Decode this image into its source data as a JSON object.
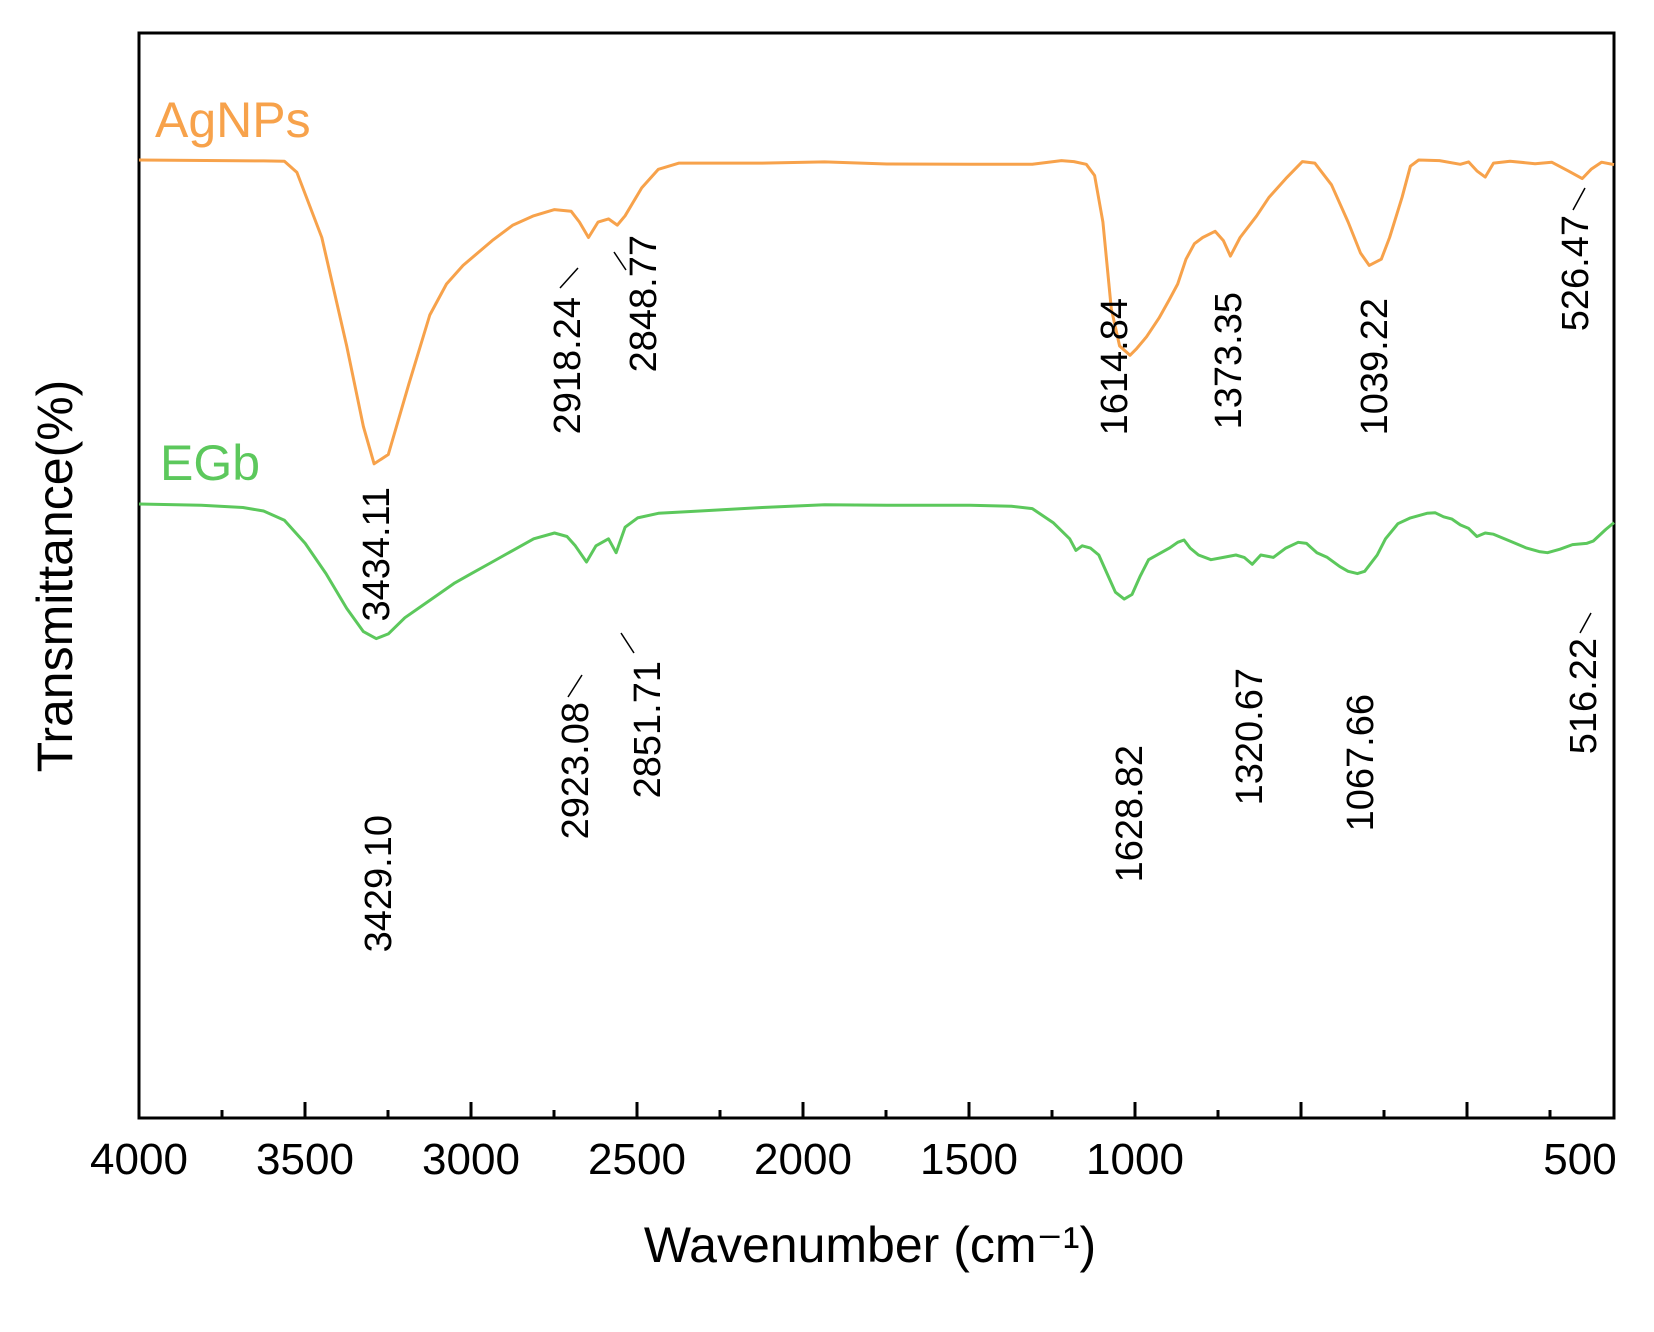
{
  "chart_data": {
    "type": "line",
    "xlabel": "Wavenumber (cm⁻¹)",
    "ylabel": "Transmittance(%)",
    "xlim": [
      4000,
      450
    ],
    "x_reversed": true,
    "y_ticks": false,
    "grid": false,
    "legend": "inline labels above each spectrum",
    "x_ticks": [
      "4000",
      "3500",
      "3000",
      "2500",
      "2000",
      "1500",
      "1000",
      "500"
    ],
    "series": [
      {
        "name": "AgNPs",
        "color": "#f7a24b",
        "points": [
          [
            4000,
            100
          ],
          [
            3800,
            99.8
          ],
          [
            3700,
            99.7
          ],
          [
            3650,
            99.6
          ],
          [
            3620,
            96
          ],
          [
            3560,
            75
          ],
          [
            3500,
            40
          ],
          [
            3460,
            14
          ],
          [
            3434.11,
            2
          ],
          [
            3400,
            5
          ],
          [
            3350,
            28
          ],
          [
            3300,
            50
          ],
          [
            3260,
            60
          ],
          [
            3220,
            66
          ],
          [
            3150,
            74
          ],
          [
            3100,
            79
          ],
          [
            3050,
            82
          ],
          [
            3000,
            84
          ],
          [
            2960,
            83.5
          ],
          [
            2940,
            80
          ],
          [
            2918.24,
            75
          ],
          [
            2895,
            80
          ],
          [
            2870,
            81
          ],
          [
            2848.77,
            79
          ],
          [
            2830,
            82
          ],
          [
            2790,
            91
          ],
          [
            2750,
            97
          ],
          [
            2700,
            99
          ],
          [
            2500,
            99
          ],
          [
            2350,
            99.4
          ],
          [
            2200,
            98.7
          ],
          [
            2000,
            98.6
          ],
          [
            1850,
            98.6
          ],
          [
            1780,
            99.8
          ],
          [
            1750,
            99.5
          ],
          [
            1720,
            98.6
          ],
          [
            1700,
            95
          ],
          [
            1680,
            80
          ],
          [
            1660,
            52
          ],
          [
            1640,
            40
          ],
          [
            1614.84,
            37
          ],
          [
            1600,
            39
          ],
          [
            1575,
            43
          ],
          [
            1545,
            49
          ],
          [
            1520,
            55
          ],
          [
            1500,
            60
          ],
          [
            1480,
            68
          ],
          [
            1460,
            73
          ],
          [
            1440,
            75
          ],
          [
            1410,
            77
          ],
          [
            1390,
            74
          ],
          [
            1373.35,
            69
          ],
          [
            1350,
            75
          ],
          [
            1310,
            82
          ],
          [
            1280,
            88
          ],
          [
            1240,
            94
          ],
          [
            1200,
            99.5
          ],
          [
            1170,
            99
          ],
          [
            1130,
            92
          ],
          [
            1090,
            80
          ],
          [
            1060,
            70
          ],
          [
            1039.22,
            66
          ],
          [
            1010,
            68
          ],
          [
            990,
            75
          ],
          [
            960,
            88
          ],
          [
            940,
            98
          ],
          [
            920,
            100
          ],
          [
            870,
            99.8
          ],
          [
            820,
            98.6
          ],
          [
            800,
            99.4
          ],
          [
            780,
            96.5
          ],
          [
            760,
            94.5
          ],
          [
            740,
            99
          ],
          [
            700,
            99.6
          ],
          [
            640,
            98.8
          ],
          [
            600,
            99.3
          ],
          [
            560,
            96.5
          ],
          [
            526.47,
            94
          ],
          [
            505,
            97
          ],
          [
            480,
            99.3
          ],
          [
            450,
            98.5
          ]
        ],
        "peak_labels": [
          "3434.11",
          "2918.24",
          "2848.77",
          "1614.84",
          "1373.35",
          "1039.22",
          "526.47"
        ]
      },
      {
        "name": "EGb",
        "color": "#5cc85c",
        "points": [
          [
            4000,
            100
          ],
          [
            3850,
            99.5
          ],
          [
            3750,
            98.5
          ],
          [
            3700,
            97
          ],
          [
            3650,
            93
          ],
          [
            3600,
            83
          ],
          [
            3550,
            70
          ],
          [
            3500,
            55
          ],
          [
            3460,
            45
          ],
          [
            3429.1,
            42
          ],
          [
            3400,
            44
          ],
          [
            3360,
            51
          ],
          [
            3320,
            56
          ],
          [
            3280,
            61
          ],
          [
            3240,
            66
          ],
          [
            3200,
            70
          ],
          [
            3150,
            75
          ],
          [
            3100,
            80
          ],
          [
            3050,
            85
          ],
          [
            3000,
            87.5
          ],
          [
            2970,
            86
          ],
          [
            2950,
            82
          ],
          [
            2923.08,
            75
          ],
          [
            2900,
            82
          ],
          [
            2870,
            85
          ],
          [
            2851.71,
            79
          ],
          [
            2830,
            90
          ],
          [
            2800,
            94
          ],
          [
            2750,
            96
          ],
          [
            2650,
            97
          ],
          [
            2500,
            98.5
          ],
          [
            2350,
            99.7
          ],
          [
            2200,
            99.5
          ],
          [
            2000,
            99.5
          ],
          [
            1900,
            99
          ],
          [
            1850,
            98
          ],
          [
            1800,
            92
          ],
          [
            1760,
            85
          ],
          [
            1745,
            80
          ],
          [
            1730,
            82
          ],
          [
            1710,
            81
          ],
          [
            1690,
            78
          ],
          [
            1670,
            70
          ],
          [
            1650,
            62
          ],
          [
            1628.82,
            59
          ],
          [
            1610,
            61
          ],
          [
            1590,
            69
          ],
          [
            1570,
            76
          ],
          [
            1540,
            79
          ],
          [
            1520,
            81
          ],
          [
            1500,
            83.5
          ],
          [
            1485,
            84.5
          ],
          [
            1470,
            81
          ],
          [
            1450,
            78
          ],
          [
            1420,
            76
          ],
          [
            1390,
            77
          ],
          [
            1360,
            78
          ],
          [
            1340,
            77
          ],
          [
            1320.67,
            74
          ],
          [
            1300,
            78
          ],
          [
            1270,
            77
          ],
          [
            1240,
            81
          ],
          [
            1210,
            83.5
          ],
          [
            1190,
            83
          ],
          [
            1165,
            79
          ],
          [
            1140,
            77
          ],
          [
            1110,
            73
          ],
          [
            1090,
            71
          ],
          [
            1067.66,
            70
          ],
          [
            1050,
            71
          ],
          [
            1020,
            78
          ],
          [
            1000,
            85
          ],
          [
            970,
            91.5
          ],
          [
            940,
            94
          ],
          [
            900,
            96
          ],
          [
            880,
            96.2
          ],
          [
            860,
            94.5
          ],
          [
            840,
            93.5
          ],
          [
            820,
            91
          ],
          [
            800,
            89.5
          ],
          [
            780,
            86
          ],
          [
            760,
            87.5
          ],
          [
            740,
            87
          ],
          [
            700,
            84
          ],
          [
            660,
            81
          ],
          [
            630,
            79.5
          ],
          [
            610,
            79
          ],
          [
            580,
            80.5
          ],
          [
            550,
            82.5
          ],
          [
            516.22,
            83
          ],
          [
            500,
            84
          ],
          [
            470,
            89
          ],
          [
            450,
            92
          ]
        ],
        "peak_labels": [
          "3429.10",
          "2923.08",
          "2851.71",
          "1628.82",
          "1320.67",
          "1067.66",
          "516.22"
        ]
      }
    ]
  }
}
